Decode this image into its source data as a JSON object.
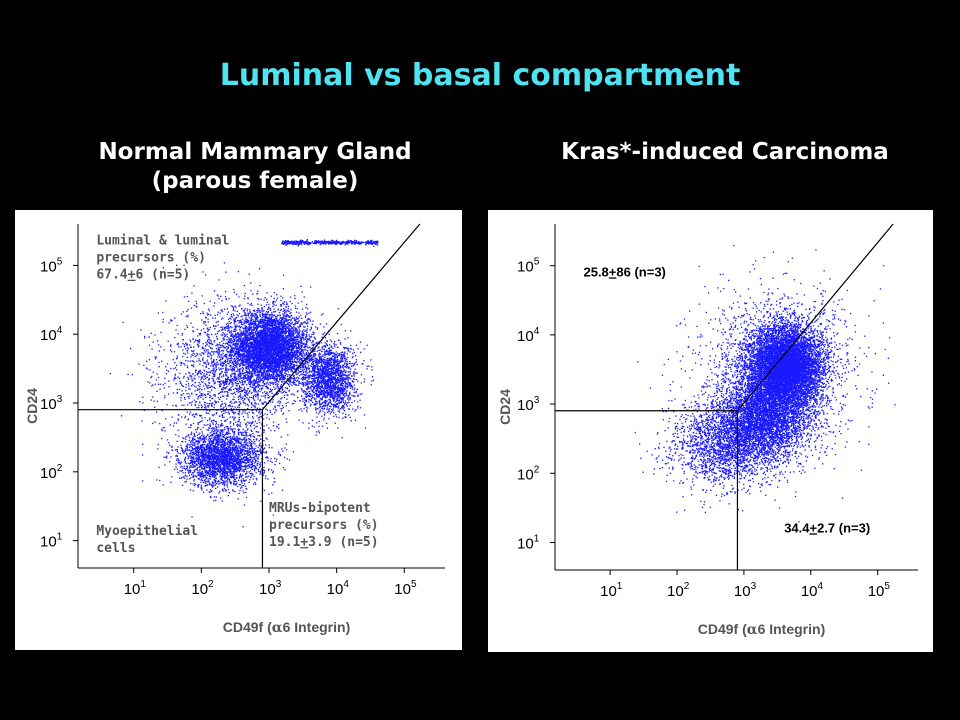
{
  "slide": {
    "title": "Luminal vs basal compartment"
  },
  "colors": {
    "background": "#000000",
    "title": "#4fe3f2",
    "dots": "#1a1aff",
    "panel": "#ffffff",
    "gate_lines": "#000000"
  },
  "chart_data": [
    {
      "type": "scatter",
      "title_line1": "Normal Mammary Gland",
      "title_line2": "(parous female)",
      "xlabel_prefix": "CD49f (",
      "xlabel_greek": "α",
      "xlabel_suffix": "6 Integrin)",
      "ylabel": "CD24",
      "x_scale": "log",
      "y_scale": "log",
      "xlim": [
        1.5,
        400000
      ],
      "ylim": [
        4,
        400000
      ],
      "x_ticks": [
        {
          "value": 10,
          "label": "10",
          "exp": "1"
        },
        {
          "value": 100,
          "label": "10",
          "exp": "2"
        },
        {
          "value": 1000,
          "label": "10",
          "exp": "3"
        },
        {
          "value": 10000,
          "label": "10",
          "exp": "4"
        },
        {
          "value": 100000,
          "label": "10",
          "exp": "5"
        }
      ],
      "y_ticks": [
        {
          "value": 10,
          "label": "10",
          "exp": "1"
        },
        {
          "value": 100,
          "label": "10",
          "exp": "2"
        },
        {
          "value": 1000,
          "label": "10",
          "exp": "3"
        },
        {
          "value": 10000,
          "label": "10",
          "exp": "4"
        },
        {
          "value": 100000,
          "label": "10",
          "exp": "5"
        }
      ],
      "populations": [
        {
          "center": [
            1000,
            6500
          ],
          "spread": [
            0.28,
            0.26
          ],
          "count": 5200
        },
        {
          "center": [
            7500,
            2300
          ],
          "spread": [
            0.2,
            0.25
          ],
          "count": 1900
        },
        {
          "center": [
            200,
            160
          ],
          "spread": [
            0.3,
            0.2
          ],
          "count": 2600
        },
        {
          "center": [
            250,
            2500
          ],
          "spread": [
            0.5,
            0.55
          ],
          "count": 2000
        }
      ],
      "top_streak": {
        "x_range": [
          1500,
          40000
        ],
        "y": 220000,
        "count": 400
      },
      "gates": {
        "lower_box": {
          "x": 800,
          "y": 800
        },
        "diagonal": {
          "from": [
            800,
            800
          ],
          "to": [
            170000,
            400000
          ]
        }
      },
      "annotations": [
        {
          "lines": [
            [
              "Luminal & luminal"
            ],
            [
              "precursors (%)"
            ],
            [
              "67.4",
              "+",
              "6 (n=5)"
            ]
          ],
          "x": 2.8,
          "y": 200000
        },
        {
          "lines": [
            [
              "MRUs-bipotent"
            ],
            [
              "precursors (%)"
            ],
            [
              "19.1",
              "+",
              "3.9 (n=5)"
            ]
          ],
          "x": 1000,
          "y": 26
        },
        {
          "lines": [
            [
              "Myoepithelial"
            ],
            [
              "cells"
            ]
          ],
          "x": 2.8,
          "y": 12
        }
      ]
    },
    {
      "type": "scatter",
      "title": "Kras*-induced Carcinoma",
      "xlabel_prefix": "CD49f (",
      "xlabel_greek": "α",
      "xlabel_suffix": "6 Integrin)",
      "ylabel": "CD24",
      "x_scale": "log",
      "y_scale": "log",
      "xlim": [
        1.5,
        400000
      ],
      "ylim": [
        4,
        400000
      ],
      "x_ticks": [
        {
          "value": 10,
          "label": "10",
          "exp": "1"
        },
        {
          "value": 100,
          "label": "10",
          "exp": "2"
        },
        {
          "value": 1000,
          "label": "10",
          "exp": "3"
        },
        {
          "value": 10000,
          "label": "10",
          "exp": "4"
        },
        {
          "value": 100000,
          "label": "10",
          "exp": "5"
        }
      ],
      "y_ticks": [
        {
          "value": 10,
          "label": "10",
          "exp": "1"
        },
        {
          "value": 100,
          "label": "10",
          "exp": "2"
        },
        {
          "value": 1000,
          "label": "10",
          "exp": "3"
        },
        {
          "value": 10000,
          "label": "10",
          "exp": "4"
        },
        {
          "value": 100000,
          "label": "10",
          "exp": "5"
        }
      ],
      "populations": [
        {
          "center": [
            4000,
            3500
          ],
          "spread": [
            0.28,
            0.3
          ],
          "count": 7500
        },
        {
          "center": [
            1800,
            600
          ],
          "spread": [
            0.35,
            0.28
          ],
          "count": 3500
        },
        {
          "center": [
            500,
            250
          ],
          "spread": [
            0.4,
            0.3
          ],
          "count": 1800
        },
        {
          "center": [
            3000,
            3000
          ],
          "spread": [
            0.6,
            0.6
          ],
          "count": 1700
        }
      ],
      "gates": {
        "lower_box": {
          "x": 800,
          "y": 800
        },
        "diagonal": {
          "from": [
            800,
            800
          ],
          "to": [
            170000,
            400000
          ]
        }
      },
      "annotations": [
        {
          "lines": [
            [
              "25.8",
              "+",
              "86 (n=3)"
            ]
          ],
          "x": 4,
          "y": 70000,
          "bold": true
        },
        {
          "lines": [
            [
              "34.4",
              "+",
              "2.7 (n=3)"
            ]
          ],
          "x": 4000,
          "y": 14,
          "bold": true
        }
      ]
    }
  ]
}
